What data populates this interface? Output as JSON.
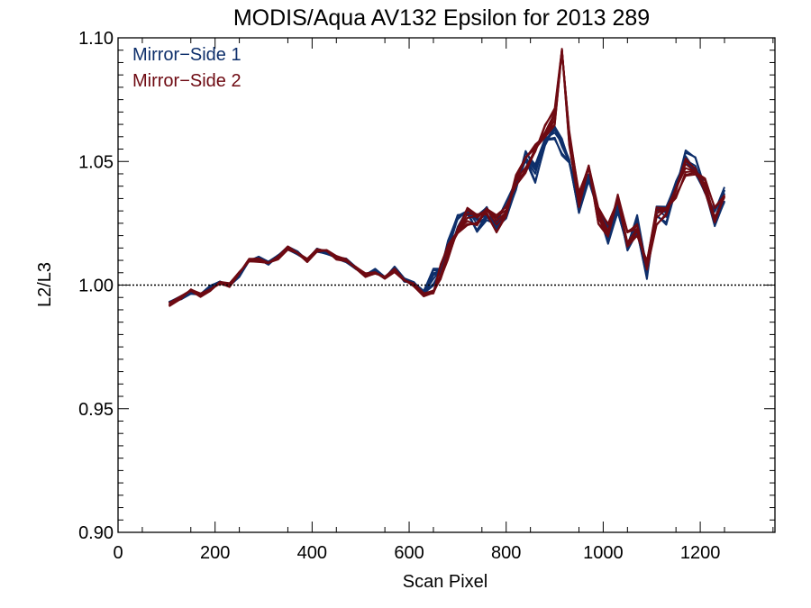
{
  "chart_data": {
    "type": "line",
    "title": "MODIS/Aqua AV132 Epsilon for 2013 289",
    "xlabel": "Scan Pixel",
    "ylabel": "L2/L3",
    "xlim": [
      0,
      1354
    ],
    "ylim": [
      0.9,
      1.1
    ],
    "x_ticks": [
      0,
      200,
      400,
      600,
      800,
      1000,
      1200
    ],
    "x_tick_labels": [
      "0",
      "200",
      "400",
      "600",
      "800",
      "1000",
      "1200"
    ],
    "y_ticks": [
      0.9,
      0.95,
      1.0,
      1.05,
      1.1
    ],
    "y_tick_labels": [
      "0.90",
      "0.95",
      "1.00",
      "1.05",
      "1.10"
    ],
    "reference_line": {
      "y": 1.0,
      "style": "dotted"
    },
    "legend_position": "top-left",
    "grid": false,
    "colors": {
      "mirror_side_1": "#0e2f6b",
      "mirror_side_2": "#6e0a12"
    },
    "series": [
      {
        "name": "Mirror−Side 1",
        "color": "#0e2f6b",
        "x": [
          105,
          130,
          150,
          170,
          190,
          210,
          230,
          250,
          270,
          290,
          310,
          330,
          350,
          370,
          390,
          410,
          430,
          450,
          470,
          490,
          510,
          530,
          550,
          570,
          590,
          610,
          630,
          650,
          665,
          680,
          700,
          720,
          740,
          760,
          780,
          800,
          820,
          840,
          860,
          880,
          900,
          915,
          930,
          950,
          970,
          990,
          1010,
          1030,
          1050,
          1070,
          1090,
          1110,
          1130,
          1150,
          1170,
          1190,
          1210,
          1230,
          1250
        ],
        "y": [
          0.993,
          0.995,
          0.997,
          0.996,
          0.999,
          1.001,
          1.0,
          1.004,
          1.01,
          1.011,
          1.009,
          1.012,
          1.015,
          1.013,
          1.01,
          1.014,
          1.013,
          1.011,
          1.01,
          1.007,
          1.004,
          1.006,
          1.003,
          1.007,
          1.002,
          1.001,
          0.997,
          1.003,
          1.006,
          1.015,
          1.026,
          1.03,
          1.025,
          1.029,
          1.024,
          1.03,
          1.04,
          1.052,
          1.045,
          1.058,
          1.062,
          1.056,
          1.05,
          1.032,
          1.045,
          1.03,
          1.02,
          1.032,
          1.015,
          1.025,
          1.005,
          1.03,
          1.028,
          1.04,
          1.052,
          1.048,
          1.038,
          1.027,
          1.037
        ]
      },
      {
        "name": "Mirror−Side 2",
        "color": "#6e0a12",
        "x": [
          105,
          130,
          150,
          170,
          190,
          210,
          230,
          250,
          270,
          290,
          310,
          330,
          350,
          370,
          390,
          410,
          430,
          450,
          470,
          490,
          510,
          530,
          550,
          570,
          590,
          610,
          630,
          650,
          665,
          680,
          700,
          720,
          740,
          760,
          780,
          800,
          820,
          840,
          860,
          880,
          900,
          915,
          930,
          950,
          970,
          990,
          1010,
          1030,
          1050,
          1070,
          1090,
          1110,
          1130,
          1150,
          1170,
          1190,
          1210,
          1230,
          1250
        ],
        "y": [
          0.992,
          0.995,
          0.998,
          0.996,
          0.998,
          1.001,
          1.0,
          1.005,
          1.01,
          1.01,
          1.009,
          1.011,
          1.015,
          1.013,
          1.01,
          1.014,
          1.014,
          1.011,
          1.01,
          1.007,
          1.004,
          1.005,
          1.003,
          1.006,
          1.002,
          1.0,
          0.996,
          0.997,
          1.005,
          1.013,
          1.022,
          1.028,
          1.027,
          1.03,
          1.025,
          1.03,
          1.042,
          1.048,
          1.055,
          1.062,
          1.068,
          1.095,
          1.06,
          1.035,
          1.048,
          1.028,
          1.022,
          1.035,
          1.018,
          1.022,
          1.008,
          1.028,
          1.03,
          1.038,
          1.048,
          1.046,
          1.04,
          1.028,
          1.036
        ]
      }
    ]
  }
}
